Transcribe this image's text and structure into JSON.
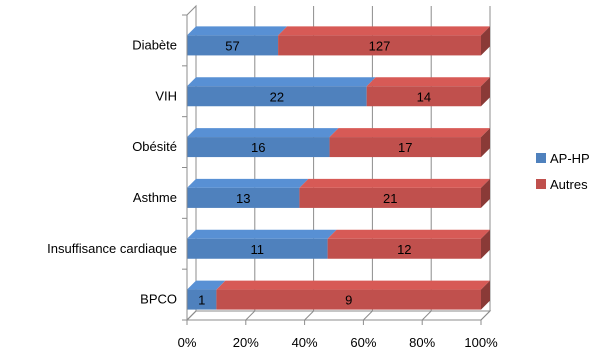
{
  "chart_data": {
    "type": "bar",
    "orientation": "horizontal",
    "stacking": "percent",
    "categories": [
      "Diabète",
      "VIH",
      "Obésité",
      "Asthme",
      "Insuffisance cardiaque",
      "BPCO"
    ],
    "series": [
      {
        "name": "AP-HP",
        "values": [
          57,
          22,
          16,
          13,
          11,
          1
        ],
        "color": "#4F81BD"
      },
      {
        "name": "Autres",
        "values": [
          127,
          14,
          17,
          21,
          12,
          9
        ],
        "color": "#C0504D"
      }
    ],
    "x_ticks": [
      "0%",
      "20%",
      "40%",
      "60%",
      "80%",
      "100%"
    ],
    "xlim": [
      0,
      100
    ],
    "grid": true,
    "legend_position": "right",
    "title": "",
    "xlabel": "",
    "ylabel": ""
  }
}
